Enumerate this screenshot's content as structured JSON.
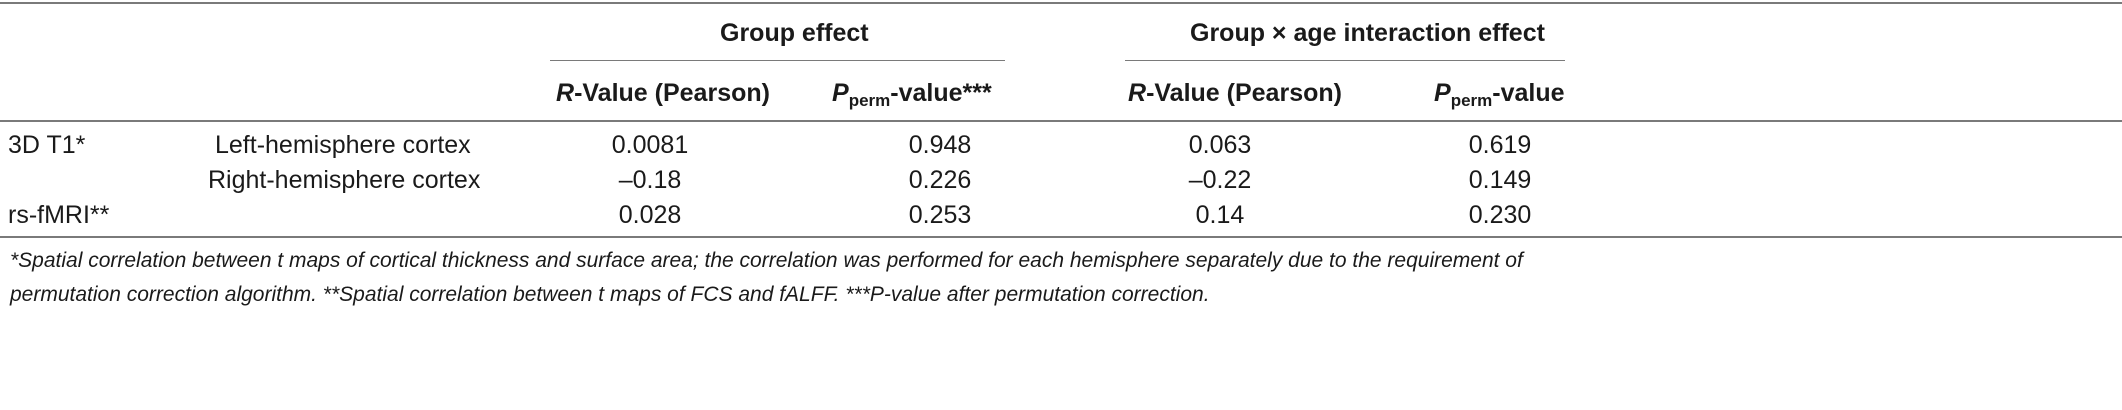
{
  "headers": {
    "group_effect": "Group effect",
    "interaction_effect": "Group × age interaction effect",
    "r_value_italic": "R",
    "r_value_rest": "-Value (Pearson)",
    "p_letter": "P",
    "p_sub": "perm",
    "p_suffix_group": "-value***",
    "p_suffix_interaction": "-value"
  },
  "rows": [
    {
      "modality": "3D T1*",
      "region": "Left-hemisphere cortex",
      "group_r": "0.0081",
      "group_p": "0.948",
      "inter_r": "0.063",
      "inter_p": "0.619"
    },
    {
      "modality": "",
      "region": "Right-hemisphere cortex",
      "group_r": "–0.18",
      "group_p": "0.226",
      "inter_r": "–0.22",
      "inter_p": "0.149"
    },
    {
      "modality": "rs-fMRI**",
      "region": "",
      "group_r": "0.028",
      "group_p": "0.253",
      "inter_r": "0.14",
      "inter_p": "0.230"
    }
  ],
  "footnote": {
    "line1": "*Spatial correlation between t maps of cortical thickness and surface area; the correlation was performed for each hemisphere separately due to the requirement of",
    "line2": "permutation correction algorithm. **Spatial correlation between t maps of FCS and fALFF. ***P-value after permutation correction."
  }
}
